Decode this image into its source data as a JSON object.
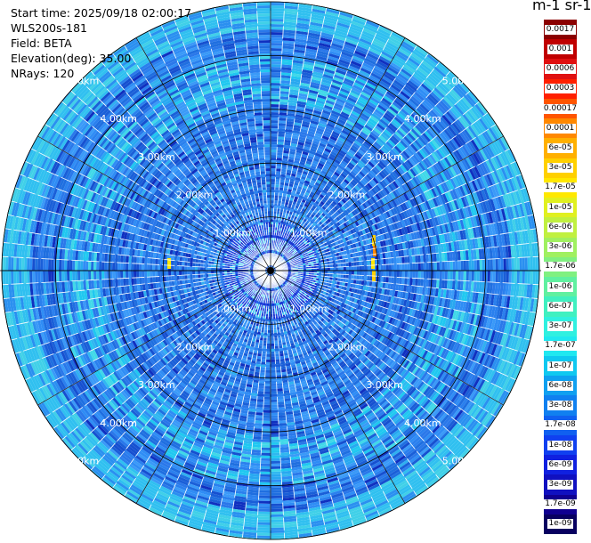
{
  "info": {
    "start_time": "Start time: 2025/09/18 02:00:17",
    "site": "WLS200s-181",
    "field": "Field: BETA",
    "elevation": "Elevation(deg): 35.00",
    "nrays": "NRays: 120"
  },
  "ranges": {
    "rings_km": [
      1,
      2,
      3,
      4,
      5
    ],
    "labels": [
      "1.00km",
      "2.00km",
      "3.00km",
      "4.00km",
      "5.00km"
    ]
  },
  "colorbar": {
    "unit_label": "m-1 sr-1",
    "labels": [
      "0.0017",
      "0.001",
      "0.0006",
      "0.0003",
      "0.00017",
      "0.0001",
      "6e-05",
      "3e-05",
      "1.7e-05",
      "1e-05",
      "6e-06",
      "3e-06",
      "1.7e-06",
      "1e-06",
      "6e-07",
      "3e-07",
      "1.7e-07",
      "1e-07",
      "6e-08",
      "3e-08",
      "1.7e-08",
      "1e-08",
      "6e-09",
      "3e-09",
      "1.7e-09",
      "1e-09"
    ],
    "colors": [
      "#8b0000",
      "#c00000",
      "#e01010",
      "#ff2000",
      "#ff5500",
      "#ff8800",
      "#ffb000",
      "#ffd000",
      "#ffe800",
      "#e0f020",
      "#c0f040",
      "#a0f060",
      "#80f080",
      "#60f0a0",
      "#40f0c0",
      "#30f0e0",
      "#20e8f0",
      "#10c8f0",
      "#10a0f0",
      "#1080f0",
      "#1060f0",
      "#1040f0",
      "#1020e0",
      "#1010c0",
      "#100090",
      "#080060"
    ]
  }
}
